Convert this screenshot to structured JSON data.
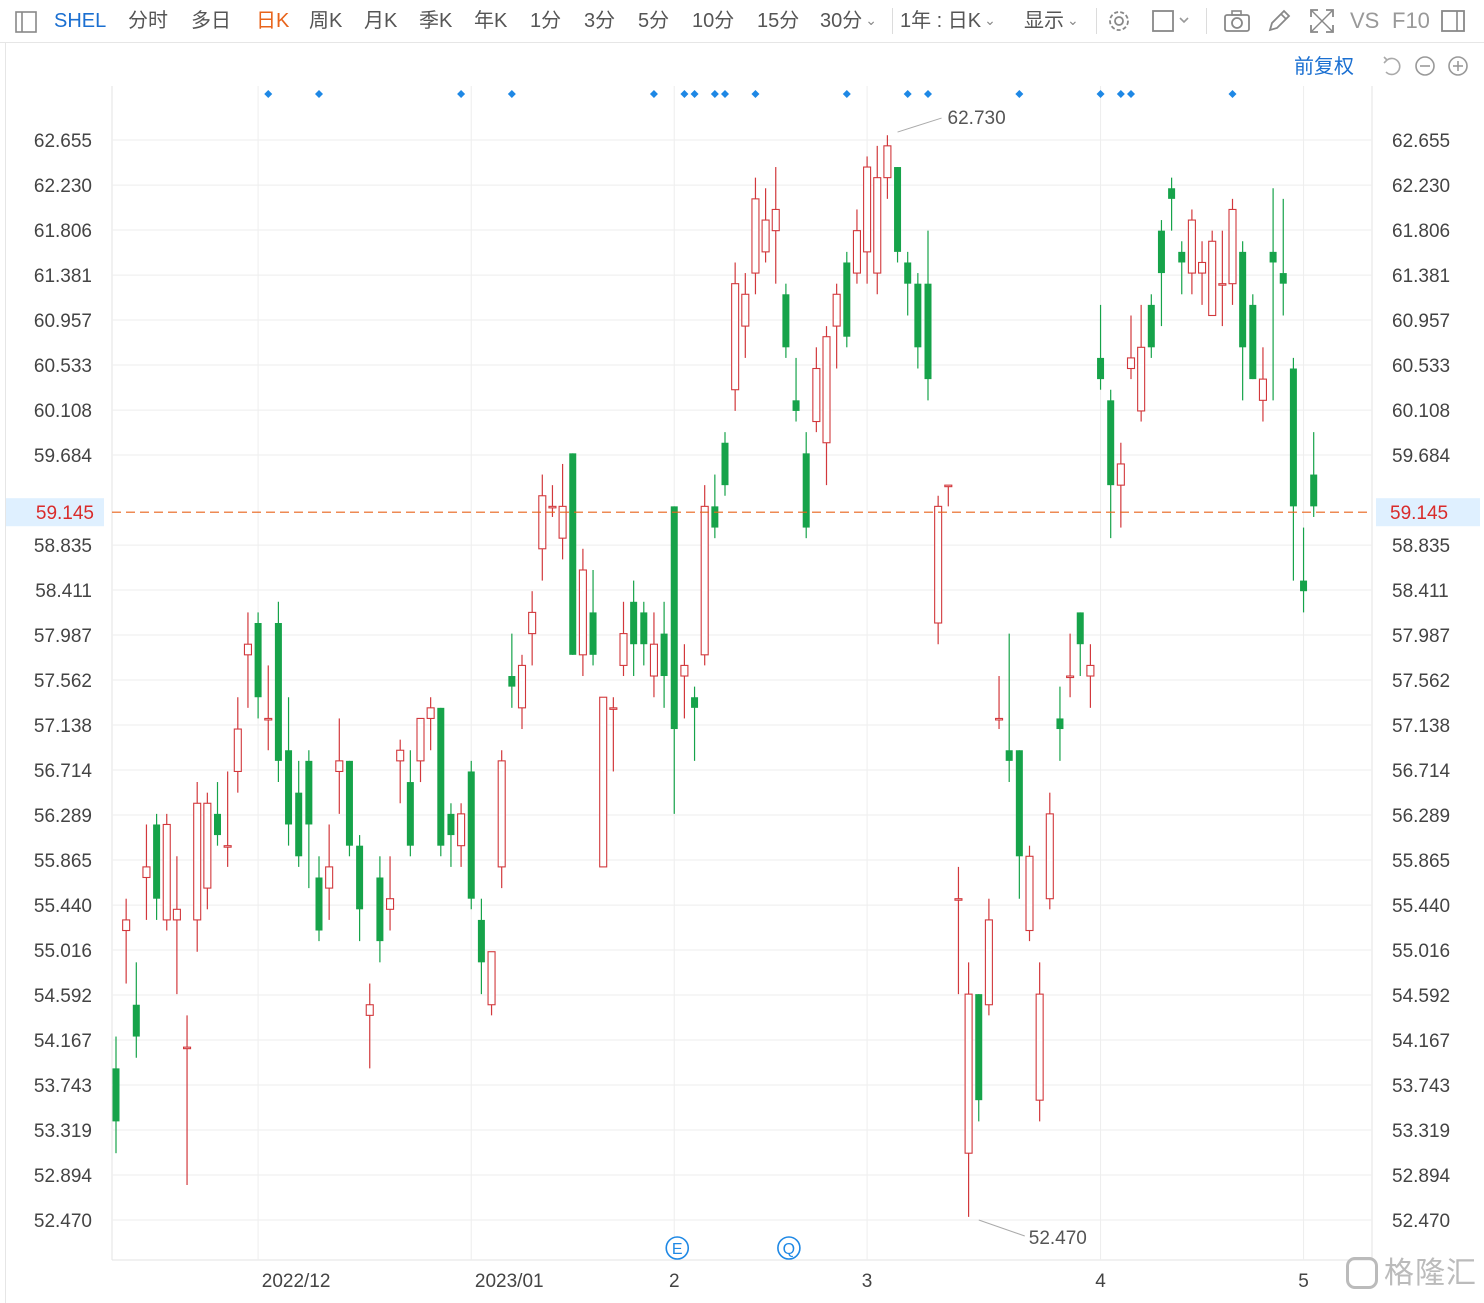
{
  "toolbar": {
    "symbol": "SHEL",
    "tabs": [
      "分时",
      "多日",
      "日K",
      "周K",
      "月K",
      "季K",
      "年K",
      "1分",
      "3分",
      "5分",
      "10分",
      "15分",
      "30分"
    ],
    "active_tab": "日K",
    "range_select": "1年 : 日K",
    "display_label": "显示",
    "compare_label": "VS",
    "f10_label": "F10"
  },
  "adjust_label": "前复权",
  "brand": "格隆汇",
  "colors": {
    "up": "#d2383c",
    "down": "#16a34a",
    "last_price": "#e8641b",
    "accent": "#1a6fd1",
    "grid": "#eeeeee"
  },
  "chart_data": {
    "type": "candlestick",
    "y_ticks": [
      "62.655",
      "62.230",
      "61.806",
      "61.381",
      "60.957",
      "60.533",
      "60.108",
      "59.684",
      "58.835",
      "58.411",
      "57.987",
      "57.562",
      "57.138",
      "56.714",
      "56.289",
      "55.865",
      "55.440",
      "55.016",
      "54.592",
      "54.167",
      "53.743",
      "53.319",
      "52.894",
      "52.470"
    ],
    "ylim": [
      52.47,
      62.655
    ],
    "x_tick_labels": [
      {
        "label": "2022/12",
        "index": 14
      },
      {
        "label": "2023/01",
        "index": 35
      },
      {
        "label": "2",
        "index": 55
      },
      {
        "label": "3",
        "index": 74
      },
      {
        "label": "4",
        "index": 97
      },
      {
        "label": "5",
        "index": 117
      }
    ],
    "last_price": 59.145,
    "max_label": {
      "value": "62.730",
      "index": 77
    },
    "min_label": {
      "value": "52.470",
      "index": 85
    },
    "event_markers": [
      {
        "symbol": "E",
        "index": 55
      },
      {
        "symbol": "Q",
        "index": 66
      }
    ],
    "signal_indices": [
      15,
      20,
      34,
      39,
      53,
      56,
      57,
      59,
      60,
      63,
      72,
      78,
      80,
      89,
      97,
      99,
      100,
      110
    ],
    "candles": [
      [
        53.9,
        53.4,
        54.2,
        53.1
      ],
      [
        55.2,
        55.3,
        55.5,
        54.7
      ],
      [
        54.5,
        54.2,
        54.9,
        54.0
      ],
      [
        55.7,
        55.8,
        56.2,
        55.3
      ],
      [
        56.2,
        55.5,
        56.3,
        55.3
      ],
      [
        55.3,
        56.2,
        56.3,
        55.2
      ],
      [
        55.3,
        55.4,
        55.9,
        54.6
      ],
      [
        54.1,
        54.1,
        54.4,
        52.8
      ],
      [
        55.3,
        56.4,
        56.6,
        55.0
      ],
      [
        55.6,
        56.4,
        56.5,
        55.4
      ],
      [
        56.3,
        56.1,
        56.6,
        56.0
      ],
      [
        56.0,
        56.0,
        56.7,
        55.8
      ],
      [
        56.7,
        57.1,
        57.4,
        56.5
      ],
      [
        57.8,
        57.9,
        58.2,
        57.3
      ],
      [
        58.1,
        57.4,
        58.2,
        57.2
      ],
      [
        57.2,
        57.2,
        57.7,
        56.9
      ],
      [
        58.1,
        56.8,
        58.3,
        56.6
      ],
      [
        56.9,
        56.2,
        57.4,
        56.0
      ],
      [
        56.5,
        55.9,
        56.8,
        55.8
      ],
      [
        56.8,
        56.2,
        56.9,
        55.6
      ],
      [
        55.7,
        55.2,
        55.9,
        55.1
      ],
      [
        55.6,
        55.8,
        56.2,
        55.3
      ],
      [
        56.7,
        56.8,
        57.2,
        56.3
      ],
      [
        56.8,
        56.0,
        56.8,
        55.9
      ],
      [
        56.0,
        55.4,
        56.1,
        55.1
      ],
      [
        54.4,
        54.5,
        54.7,
        53.9
      ],
      [
        55.7,
        55.1,
        55.9,
        54.9
      ],
      [
        55.4,
        55.5,
        55.9,
        55.2
      ],
      [
        56.8,
        56.9,
        57.0,
        56.4
      ],
      [
        56.6,
        56.0,
        56.9,
        55.9
      ],
      [
        56.8,
        57.2,
        57.2,
        56.6
      ],
      [
        57.2,
        57.3,
        57.4,
        56.9
      ],
      [
        57.3,
        56.0,
        57.3,
        55.9
      ],
      [
        56.3,
        56.1,
        56.4,
        55.8
      ],
      [
        56.0,
        56.3,
        56.4,
        55.8
      ],
      [
        56.7,
        55.5,
        56.8,
        55.4
      ],
      [
        55.3,
        54.9,
        55.5,
        54.6
      ],
      [
        54.5,
        55.0,
        55.0,
        54.4
      ],
      [
        55.8,
        56.8,
        56.9,
        55.6
      ],
      [
        57.6,
        57.5,
        58.0,
        57.3
      ],
      [
        57.3,
        57.7,
        57.8,
        57.1
      ],
      [
        58.0,
        58.2,
        58.4,
        57.7
      ],
      [
        58.8,
        59.3,
        59.5,
        58.5
      ],
      [
        59.2,
        59.2,
        59.4,
        59.1
      ],
      [
        58.9,
        59.2,
        59.6,
        58.7
      ],
      [
        59.7,
        57.8,
        59.7,
        57.8
      ],
      [
        57.8,
        58.6,
        58.8,
        57.6
      ],
      [
        58.2,
        57.8,
        58.6,
        57.7
      ],
      [
        55.8,
        57.4,
        57.4,
        55.8
      ],
      [
        57.3,
        57.3,
        57.4,
        56.7
      ],
      [
        57.7,
        58.0,
        58.3,
        57.6
      ],
      [
        58.3,
        57.9,
        58.5,
        57.6
      ],
      [
        58.2,
        57.9,
        58.3,
        57.7
      ],
      [
        57.6,
        57.9,
        58.2,
        57.4
      ],
      [
        58.0,
        57.6,
        58.3,
        57.3
      ],
      [
        59.2,
        57.1,
        59.2,
        56.3
      ],
      [
        57.6,
        57.7,
        57.9,
        57.2
      ],
      [
        57.4,
        57.3,
        57.5,
        56.8
      ],
      [
        57.8,
        59.2,
        59.4,
        57.7
      ],
      [
        59.2,
        59.0,
        59.5,
        58.9
      ],
      [
        59.8,
        59.4,
        59.9,
        59.3
      ],
      [
        60.3,
        61.3,
        61.5,
        60.1
      ],
      [
        60.9,
        61.2,
        61.4,
        60.6
      ],
      [
        61.4,
        62.1,
        62.3,
        61.2
      ],
      [
        61.6,
        61.9,
        62.2,
        61.5
      ],
      [
        61.8,
        62.0,
        62.4,
        61.3
      ],
      [
        61.2,
        60.7,
        61.3,
        60.6
      ],
      [
        60.2,
        60.1,
        60.6,
        60.0
      ],
      [
        59.7,
        59.0,
        59.9,
        58.9
      ],
      [
        60.0,
        60.5,
        60.7,
        59.9
      ],
      [
        59.8,
        60.8,
        60.9,
        59.4
      ],
      [
        60.9,
        61.2,
        61.3,
        60.5
      ],
      [
        61.5,
        60.8,
        61.6,
        60.7
      ],
      [
        61.4,
        61.8,
        62.0,
        61.3
      ],
      [
        61.6,
        62.4,
        62.5,
        61.3
      ],
      [
        61.4,
        62.3,
        62.6,
        61.2
      ],
      [
        62.3,
        62.6,
        62.7,
        62.1
      ],
      [
        62.4,
        61.6,
        62.4,
        61.5
      ],
      [
        61.5,
        61.3,
        61.6,
        61.0
      ],
      [
        61.3,
        60.7,
        61.4,
        60.5
      ],
      [
        61.3,
        60.4,
        61.8,
        60.2
      ],
      [
        58.1,
        59.2,
        59.3,
        57.9
      ],
      [
        59.4,
        59.4,
        59.4,
        59.2
      ],
      [
        55.5,
        55.5,
        55.8,
        54.6
      ],
      [
        53.1,
        54.6,
        54.9,
        52.5
      ],
      [
        54.6,
        53.6,
        54.6,
        53.4
      ],
      [
        54.5,
        55.3,
        55.5,
        54.4
      ],
      [
        57.2,
        57.2,
        57.6,
        57.1
      ],
      [
        56.9,
        56.8,
        58.0,
        56.6
      ],
      [
        56.9,
        55.9,
        56.9,
        55.5
      ],
      [
        55.2,
        55.9,
        56.0,
        55.1
      ],
      [
        53.6,
        54.6,
        54.9,
        53.4
      ],
      [
        55.5,
        56.3,
        56.5,
        55.4
      ],
      [
        57.2,
        57.1,
        57.5,
        56.8
      ],
      [
        57.6,
        57.6,
        58.0,
        57.4
      ],
      [
        58.2,
        57.9,
        58.2,
        57.6
      ],
      [
        57.6,
        57.7,
        57.9,
        57.3
      ],
      [
        60.6,
        60.4,
        61.1,
        60.3
      ],
      [
        60.2,
        59.4,
        60.3,
        58.9
      ],
      [
        59.4,
        59.6,
        59.8,
        59.0
      ],
      [
        60.5,
        60.6,
        61.0,
        60.4
      ],
      [
        60.1,
        60.7,
        61.1,
        60.0
      ],
      [
        61.1,
        60.7,
        61.2,
        60.6
      ],
      [
        61.8,
        61.4,
        61.9,
        60.9
      ],
      [
        62.2,
        62.1,
        62.3,
        61.8
      ],
      [
        61.6,
        61.5,
        61.7,
        61.2
      ],
      [
        61.4,
        61.9,
        62.0,
        61.2
      ],
      [
        61.4,
        61.5,
        61.7,
        61.1
      ],
      [
        61.0,
        61.7,
        61.8,
        61.0
      ],
      [
        61.3,
        61.3,
        61.8,
        60.9
      ],
      [
        61.3,
        62.0,
        62.1,
        61.1
      ],
      [
        61.6,
        60.7,
        61.7,
        60.2
      ],
      [
        61.1,
        60.4,
        61.2,
        60.4
      ],
      [
        60.2,
        60.4,
        60.7,
        60.0
      ],
      [
        61.6,
        61.5,
        62.2,
        60.2
      ],
      [
        61.4,
        61.3,
        62.1,
        61.0
      ],
      [
        60.5,
        59.2,
        60.6,
        58.5
      ],
      [
        58.5,
        58.4,
        59.0,
        58.2
      ],
      [
        59.5,
        59.2,
        59.9,
        59.1
      ]
    ]
  }
}
